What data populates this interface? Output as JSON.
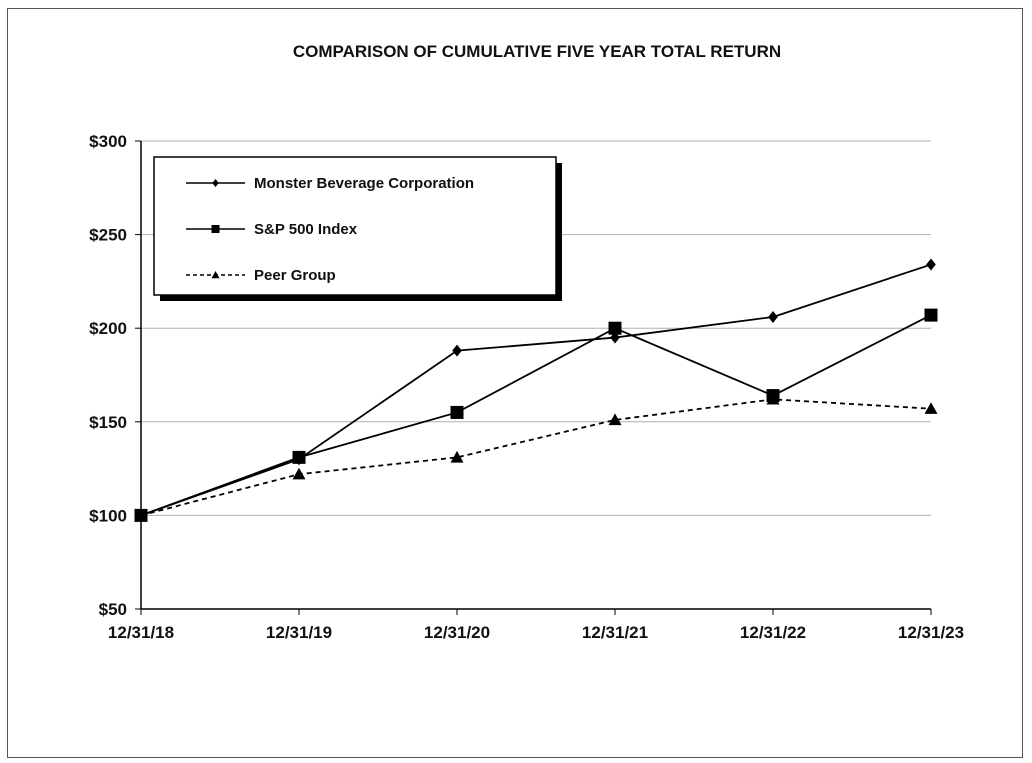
{
  "chart_data": {
    "type": "line",
    "title": "COMPARISON OF CUMULATIVE FIVE YEAR TOTAL RETURN",
    "xlabel": "",
    "ylabel": "",
    "categories": [
      "12/31/18",
      "12/31/19",
      "12/31/20",
      "12/31/21",
      "12/31/22",
      "12/31/23"
    ],
    "ylim": [
      50,
      300
    ],
    "yticks": [
      50,
      100,
      150,
      200,
      250,
      300
    ],
    "ytick_labels": [
      "$50",
      "$100",
      "$150",
      "$200",
      "$250",
      "$300"
    ],
    "grid": "horizontal",
    "legend_position": "top-left",
    "series": [
      {
        "name": "Monster Beverage Corporation",
        "marker": "diamond",
        "line": "solid",
        "values": [
          100,
          130,
          188,
          195,
          206,
          234
        ]
      },
      {
        "name": "S&P 500 Index",
        "marker": "square",
        "line": "solid",
        "values": [
          100,
          131,
          155,
          200,
          164,
          207
        ]
      },
      {
        "name": "Peer Group",
        "marker": "triangle",
        "line": "dashed",
        "values": [
          100,
          122,
          131,
          151,
          162,
          157
        ]
      }
    ]
  }
}
